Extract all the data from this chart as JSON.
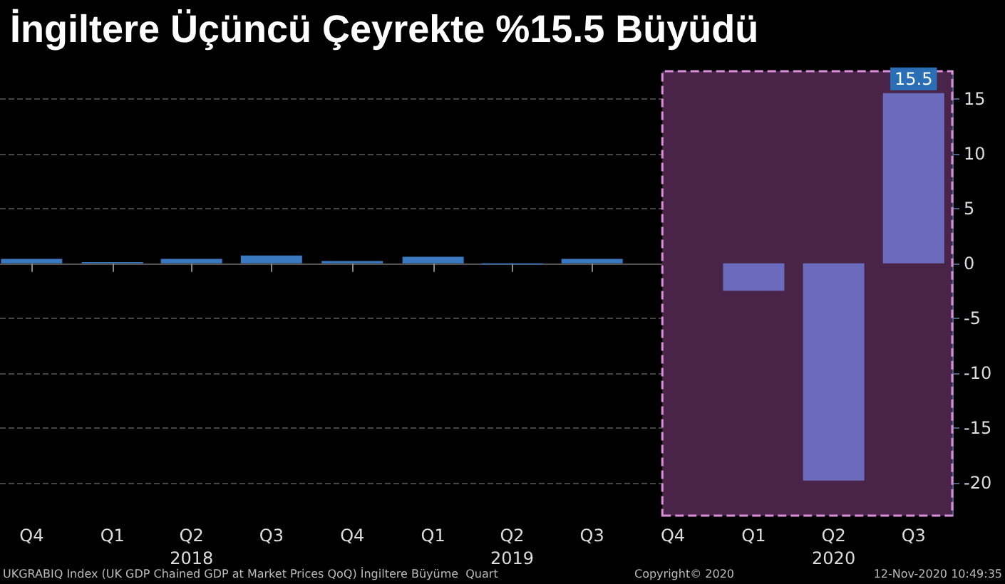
{
  "chart_data": {
    "type": "bar",
    "title": "İngiltere Üçüncü Çeyrekte %15.5 Büyüdü",
    "x": [
      "2017-10",
      "2018-01",
      "2018-04",
      "2018-07",
      "2018-10",
      "2019-01",
      "2019-04",
      "2019-07",
      "2019-10",
      "2020-01",
      "2020-04",
      "2020-07"
    ],
    "values": [
      0.4,
      0.1,
      0.4,
      0.7,
      0.2,
      0.6,
      -0.1,
      0.4,
      0.0,
      -2.5,
      -19.8,
      15.5
    ],
    "colors": [
      "#3a78c0",
      "#3a78c0",
      "#3a78c0",
      "#3a78c0",
      "#3a78c0",
      "#3a78c0",
      "#3a78c0",
      "#3a78c0",
      "#6b6bbd",
      "#6b6bbd",
      "#6b6bbd",
      "#6b6bbd"
    ],
    "value_labels": [
      null,
      null,
      null,
      null,
      null,
      null,
      null,
      null,
      null,
      null,
      null,
      "15.5"
    ],
    "xlim": [
      "2017-08-26",
      "2020-08-14"
    ],
    "xticks": [
      {
        "value": "2017-10",
        "label": "Q4"
      },
      {
        "value": "2018-01",
        "label": "Q1"
      },
      {
        "value": "2018-04",
        "label": "Q2\n2018"
      },
      {
        "value": "2018-07",
        "label": "Q3"
      },
      {
        "value": "2018-10",
        "label": "Q4"
      },
      {
        "value": "2019-01",
        "label": "Q1"
      },
      {
        "value": "2019-04",
        "label": "Q2\n2019"
      },
      {
        "value": "2019-07",
        "label": "Q3"
      },
      {
        "value": "2019-10",
        "label": "Q4"
      },
      {
        "value": "2020-01",
        "label": "Q1"
      },
      {
        "value": "2020-04",
        "label": "Q2\n2020"
      },
      {
        "value": "2020-07",
        "label": "Q3"
      }
    ],
    "ylim": [
      -23,
      17.5
    ],
    "yticks": [
      -20,
      -15,
      -10,
      -5,
      0,
      5,
      10,
      15
    ],
    "grid": "y",
    "bands": [
      {
        "axis": "x",
        "from": "2019-09-19",
        "to": "2020-08-14",
        "color": "#4a2448"
      }
    ],
    "annotations": [
      "UKGRABIQ Index (UK GDP Chained GDP at Market Prices QoQ) İngiltere Büyüme  Quart",
      "Copyright© 2020",
      "12-Nov-2020 10:49:35"
    ]
  }
}
